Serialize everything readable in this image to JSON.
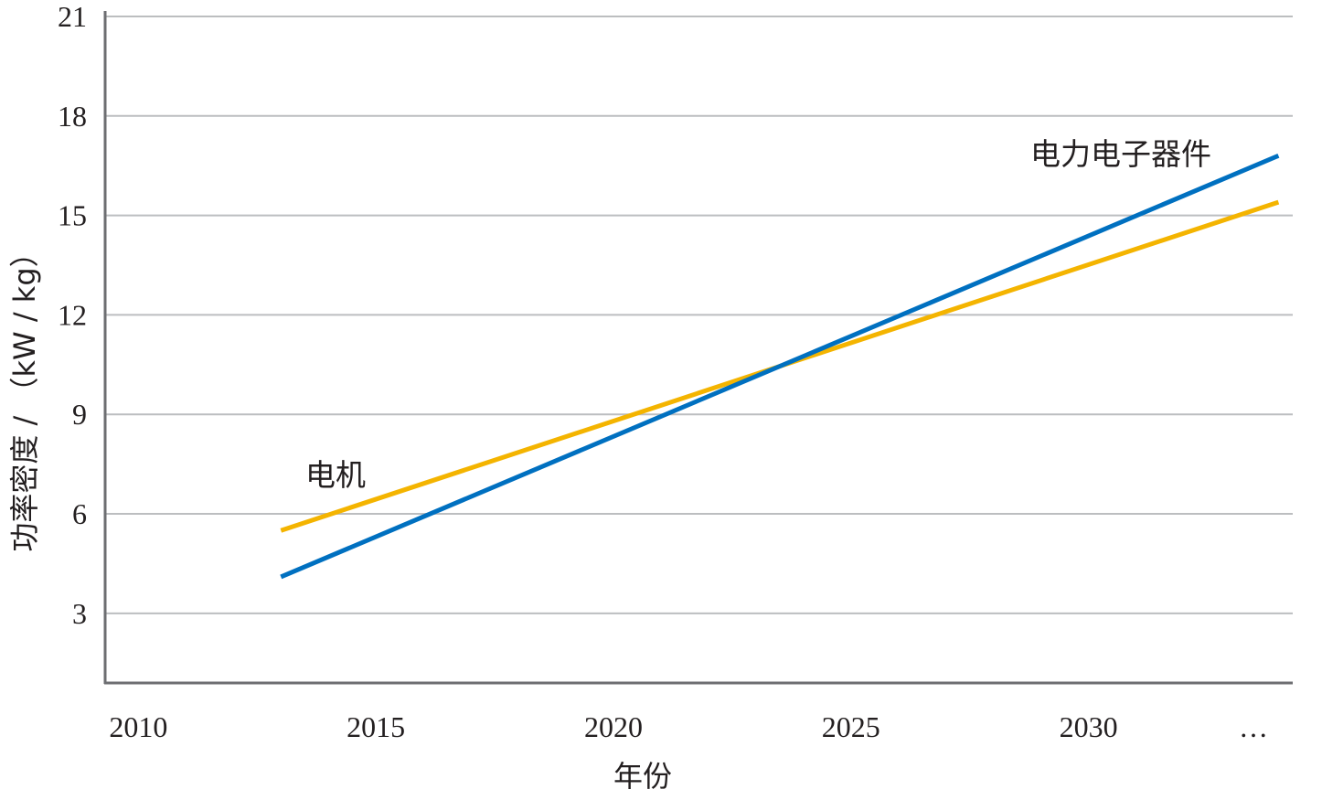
{
  "chart_data": {
    "type": "line",
    "title": "",
    "xlabel": "年份",
    "ylabel": "功率密度 / （kW / kg）",
    "x_ticks": [
      "2010",
      "2015",
      "2020",
      "2025",
      "2030",
      "…"
    ],
    "y_ticks": [
      3,
      6,
      9,
      12,
      15,
      18,
      21
    ],
    "xlim": [
      2009.3,
      2034.3
    ],
    "ylim": [
      0.9,
      21
    ],
    "grid": "horizontal",
    "legend": "inline labels",
    "series": [
      {
        "name": "电机",
        "color": "#f4b400",
        "x": [
          2013,
          2034
        ],
        "y": [
          5.5,
          15.4
        ]
      },
      {
        "name": "电力电子器件",
        "color": "#0070c0",
        "x": [
          2013,
          2034
        ],
        "y": [
          4.1,
          16.8
        ]
      }
    ]
  },
  "colors": {
    "axis": "#6d6e71",
    "grid": "#bcbec0",
    "text": "#231f20"
  }
}
